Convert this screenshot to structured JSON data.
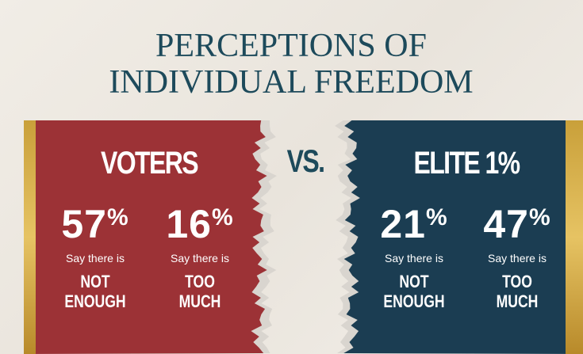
{
  "title": [
    "PERCEPTIONS OF",
    "INDIVIDUAL FREEDOM"
  ],
  "vs": "VS.",
  "panels": [
    {
      "heading": "VOTERS",
      "stats": [
        {
          "number": "57",
          "unit": "%",
          "lead": "Say there is",
          "answer": [
            "NOT",
            "ENOUGH"
          ]
        },
        {
          "number": "16",
          "unit": "%",
          "lead": "Say there is",
          "answer": [
            "TOO",
            "MUCH"
          ]
        }
      ]
    },
    {
      "heading": "ELITE 1%",
      "stats": [
        {
          "number": "21",
          "unit": "%",
          "lead": "Say there is",
          "answer": [
            "NOT",
            "ENOUGH"
          ]
        },
        {
          "number": "47",
          "unit": "%",
          "lead": "Say there is",
          "answer": [
            "TOO",
            "MUCH"
          ]
        }
      ]
    }
  ]
}
